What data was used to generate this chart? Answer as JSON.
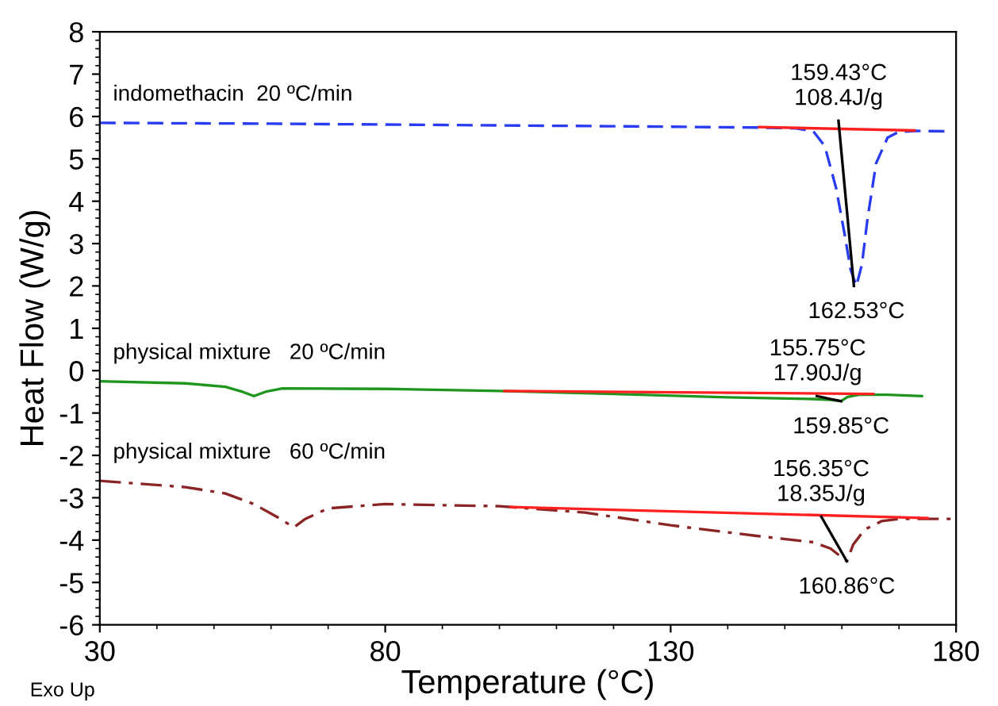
{
  "chart_data": {
    "type": "line",
    "xlabel": "Temperature (°C)",
    "ylabel": "Heat Flow (W/g)",
    "xlim": [
      30,
      180
    ],
    "ylim": [
      -6,
      8
    ],
    "xticks": [
      30,
      80,
      130,
      180
    ],
    "yticks": [
      -6,
      -5,
      -4,
      -3,
      -2,
      -1,
      0,
      1,
      2,
      3,
      4,
      5,
      6,
      7,
      8
    ],
    "grid": false,
    "legend": false,
    "series": [
      {
        "name": "indomethacin  20 ºC/min",
        "color": "#2a3cf0",
        "line_style": "dashed",
        "x": [
          30,
          60,
          90,
          120,
          145,
          152,
          155,
          157,
          159,
          160.5,
          161.5,
          162.53,
          163.5,
          164.5,
          166,
          168,
          170,
          173,
          178
        ],
        "values": [
          5.85,
          5.83,
          5.8,
          5.77,
          5.74,
          5.72,
          5.65,
          5.3,
          4.3,
          3.2,
          2.4,
          2.0,
          2.5,
          3.6,
          4.9,
          5.5,
          5.64,
          5.66,
          5.65
        ]
      },
      {
        "name": "physical mixture   20 ºC/min",
        "color": "#1e961e",
        "line_style": "solid",
        "x": [
          30,
          45,
          52,
          55,
          57,
          59,
          62,
          80,
          100,
          120,
          140,
          155,
          158,
          159.85,
          161,
          163,
          168,
          174
        ],
        "values": [
          -0.25,
          -0.3,
          -0.38,
          -0.5,
          -0.6,
          -0.5,
          -0.42,
          -0.43,
          -0.48,
          -0.55,
          -0.63,
          -0.67,
          -0.69,
          -0.72,
          -0.62,
          -0.57,
          -0.57,
          -0.6
        ]
      },
      {
        "name": "physical mixture   60 ºC/min",
        "color": "#8b2424",
        "line_style": "dashdot",
        "x": [
          30,
          45,
          52,
          57,
          61,
          64,
          66,
          70,
          80,
          100,
          115,
          130,
          145,
          155,
          158,
          160.86,
          162,
          164,
          167,
          170,
          175,
          180
        ],
        "values": [
          -2.6,
          -2.75,
          -2.9,
          -3.15,
          -3.45,
          -3.7,
          -3.5,
          -3.25,
          -3.15,
          -3.2,
          -3.35,
          -3.65,
          -3.9,
          -4.05,
          -4.2,
          -4.5,
          -4.1,
          -3.75,
          -3.55,
          -3.5,
          -3.5,
          -3.5
        ]
      },
      {
        "color": "#ff2020",
        "line_style": "solid",
        "x": [
          145.5,
          172.7
        ],
        "values": [
          5.75,
          5.67
        ]
      },
      {
        "color": "#ff2020",
        "line_style": "solid",
        "x": [
          100.9,
          165.5
        ],
        "values": [
          -0.48,
          -0.55
        ]
      },
      {
        "color": "#ff2020",
        "line_style": "solid",
        "x": [
          102,
          175
        ],
        "values": [
          -3.22,
          -3.48
        ]
      },
      {
        "color": "#000000",
        "line_style": "solid",
        "x": [
          159.4,
          162.1
        ],
        "values": [
          5.9,
          2.0
        ]
      },
      {
        "color": "#000000",
        "line_style": "solid",
        "x": [
          155.6,
          159.85
        ],
        "values": [
          -0.6,
          -0.72
        ]
      },
      {
        "color": "#000000",
        "line_style": "solid",
        "x": [
          156.4,
          160.86
        ],
        "values": [
          -3.45,
          -4.5
        ]
      }
    ],
    "annotations": [
      {
        "text": "159.43°C\n108.4J/g",
        "x": 159.43,
        "y": 5.9
      },
      {
        "text": "162.53°C",
        "x": 162.53,
        "y": 2.0
      },
      {
        "text": "155.75°C\n17.90J/g",
        "x": 155.75,
        "y": -0.6
      },
      {
        "text": "159.85°C",
        "x": 159.85,
        "y": -0.72
      },
      {
        "text": "156.35°C\n18.35J/g",
        "x": 156.35,
        "y": -3.45
      },
      {
        "text": "160.86°C",
        "x": 160.86,
        "y": -4.5
      },
      "Exo Up"
    ]
  }
}
